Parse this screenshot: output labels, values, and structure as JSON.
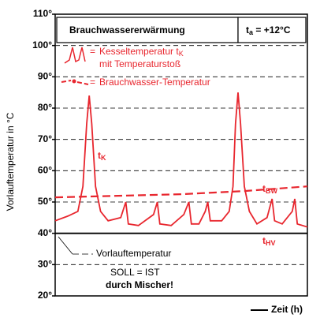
{
  "chart_data": {
    "type": "line",
    "title": "Brauchwassererwärmung",
    "outside_temp": {
      "text": "t",
      "sub": "a",
      "rest": " = +12°C"
    },
    "y_label": "Vorlauftemperatur in °C",
    "x_label": "Zeit (h)",
    "legend_prefix": "=",
    "xlim": [
      0,
      100
    ],
    "ylim": [
      20,
      110
    ],
    "yticks": [
      {
        "value": 20,
        "label": "20°"
      },
      {
        "value": 30,
        "label": "30°"
      },
      {
        "value": 40,
        "label": "40°"
      },
      {
        "value": 50,
        "label": "50°"
      },
      {
        "value": 60,
        "label": "60°"
      },
      {
        "value": 70,
        "label": "70°"
      },
      {
        "value": 80,
        "label": "80°"
      },
      {
        "value": 90,
        "label": "90°"
      },
      {
        "value": 100,
        "label": "100°"
      },
      {
        "value": 110,
        "label": "110°"
      }
    ],
    "grid": true,
    "series": [
      {
        "name": "Kesseltemperatur t",
        "name_sub": "K",
        "name_line2": "mit Temperaturstoß",
        "color": "#e8262e",
        "dashed": false,
        "x": [
          0,
          5,
          9,
          11,
          12.5,
          13.5,
          14.5,
          16,
          18,
          21,
          26,
          28,
          29,
          33,
          39,
          40.5,
          41.5,
          46,
          51,
          53,
          54,
          57,
          59.5,
          60.5,
          61.5,
          66,
          69,
          70.5,
          71.5,
          72.5,
          73.5,
          75,
          77,
          80,
          84,
          86,
          87,
          90,
          94,
          95,
          96,
          100
        ],
        "values": [
          44,
          45.5,
          47,
          55,
          75,
          84,
          75,
          55,
          47,
          44,
          45,
          50,
          43,
          42.5,
          46,
          50,
          43,
          42.5,
          46,
          50,
          43,
          43,
          47,
          50,
          44,
          44,
          47,
          55,
          75,
          85,
          75,
          55,
          47,
          43,
          45,
          51,
          44,
          43,
          47,
          51,
          43,
          42
        ]
      },
      {
        "name": "Brauchwasser-Temperatur",
        "color": "#e8262e",
        "dashed": true,
        "x": [
          0,
          25,
          50,
          75,
          100
        ],
        "values": [
          51.5,
          52,
          52.5,
          53.5,
          55
        ]
      },
      {
        "name": "Vorlauftemperatur",
        "color": "#000000",
        "dashed": false,
        "x": [
          0,
          100
        ],
        "values": [
          40,
          40
        ]
      }
    ],
    "annotations": [
      {
        "text": "t",
        "sub": "K"
      },
      {
        "text": "t",
        "sub": "BW"
      },
      {
        "text": "t",
        "sub": "HV"
      },
      {
        "text": "SOLL = IST"
      },
      {
        "text": "durch Mischer!"
      }
    ]
  }
}
